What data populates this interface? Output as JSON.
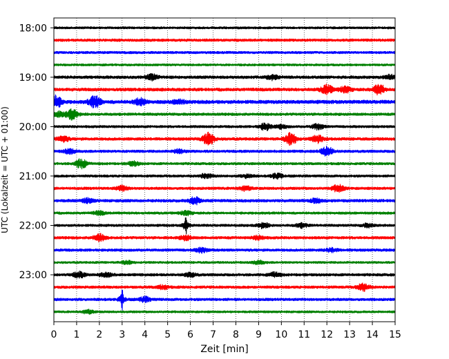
{
  "chart_data": {
    "type": "line",
    "title": "",
    "xlabel": "Zeit  [min]",
    "ylabel": "UTC (Lokalzeit = UTC + 01:00)",
    "xlim": [
      0,
      15
    ],
    "ylim": [
      24.0,
      18.0
    ],
    "x_ticks": [
      "0",
      "1",
      "2",
      "3",
      "4",
      "5",
      "6",
      "7",
      "8",
      "9",
      "10",
      "11",
      "12",
      "13",
      "14",
      "15"
    ],
    "y_ticks": [
      {
        "label": "18:00",
        "hour": 18.0
      },
      {
        "label": "19:00",
        "hour": 19.0
      },
      {
        "label": "20:00",
        "hour": 20.0
      },
      {
        "label": "21:00",
        "hour": 21.0
      },
      {
        "label": "22:00",
        "hour": 22.0
      },
      {
        "label": "23:00",
        "hour": 23.0
      }
    ],
    "grid": {
      "vertical": true,
      "style": "dotted"
    },
    "trace_colors": [
      "#000000",
      "#ff0000",
      "#0000ff",
      "#008000"
    ],
    "traces": [
      {
        "start": "18:00",
        "base": 1.0,
        "events": []
      },
      {
        "start": "18:15",
        "base": 1.2,
        "events": []
      },
      {
        "start": "18:30",
        "base": 1.1,
        "events": []
      },
      {
        "start": "18:45",
        "base": 1.0,
        "events": []
      },
      {
        "start": "19:00",
        "base": 1.3,
        "events": [
          {
            "t": 4.3,
            "a": 2.5
          },
          {
            "t": 9.6,
            "a": 2.0
          },
          {
            "t": 14.8,
            "a": 1.8
          }
        ]
      },
      {
        "start": "19:15",
        "base": 1.4,
        "events": [
          {
            "t": 12.0,
            "a": 4.0
          },
          {
            "t": 14.3,
            "a": 4.5
          },
          {
            "t": 12.8,
            "a": 2.5
          }
        ]
      },
      {
        "start": "19:30",
        "base": 1.6,
        "events": [
          {
            "t": 0.1,
            "a": 5.0
          },
          {
            "t": 1.8,
            "a": 5.0
          },
          {
            "t": 3.8,
            "a": 3.0
          },
          {
            "t": 5.5,
            "a": 1.8
          }
        ]
      },
      {
        "start": "19:45",
        "base": 1.2,
        "events": [
          {
            "t": 0.8,
            "a": 4.5
          },
          {
            "t": 0.2,
            "a": 2.0
          }
        ]
      },
      {
        "start": "20:00",
        "base": 1.1,
        "events": [
          {
            "t": 9.3,
            "a": 3.0
          },
          {
            "t": 11.6,
            "a": 2.5
          },
          {
            "t": 10.0,
            "a": 1.5
          }
        ]
      },
      {
        "start": "20:15",
        "base": 1.3,
        "events": [
          {
            "t": 6.8,
            "a": 5.0
          },
          {
            "t": 10.4,
            "a": 5.5
          },
          {
            "t": 11.6,
            "a": 3.0
          },
          {
            "t": 0.4,
            "a": 2.5
          }
        ]
      },
      {
        "start": "20:30",
        "base": 1.2,
        "events": [
          {
            "t": 12.0,
            "a": 4.0
          },
          {
            "t": 0.7,
            "a": 2.0
          },
          {
            "t": 5.5,
            "a": 1.5
          }
        ]
      },
      {
        "start": "20:45",
        "base": 1.1,
        "events": [
          {
            "t": 1.2,
            "a": 4.0
          },
          {
            "t": 3.5,
            "a": 1.8
          }
        ]
      },
      {
        "start": "21:00",
        "base": 1.1,
        "events": [
          {
            "t": 6.7,
            "a": 2.0
          },
          {
            "t": 9.8,
            "a": 2.2
          },
          {
            "t": 8.5,
            "a": 1.5
          }
        ]
      },
      {
        "start": "21:15",
        "base": 1.2,
        "events": [
          {
            "t": 12.5,
            "a": 3.0
          },
          {
            "t": 3.0,
            "a": 2.0
          },
          {
            "t": 8.4,
            "a": 1.8
          }
        ]
      },
      {
        "start": "21:30",
        "base": 1.3,
        "events": [
          {
            "t": 6.2,
            "a": 3.0
          },
          {
            "t": 1.5,
            "a": 1.8
          },
          {
            "t": 11.5,
            "a": 1.8
          }
        ]
      },
      {
        "start": "21:45",
        "base": 1.1,
        "events": [
          {
            "t": 5.8,
            "a": 1.8
          },
          {
            "t": 2.0,
            "a": 1.5
          }
        ]
      },
      {
        "start": "22:00",
        "base": 1.1,
        "events": [
          {
            "t": 5.8,
            "a": 6.0,
            "spike": true
          },
          {
            "t": 9.2,
            "a": 2.2
          },
          {
            "t": 10.9,
            "a": 1.8
          },
          {
            "t": 13.8,
            "a": 1.5
          }
        ]
      },
      {
        "start": "22:15",
        "base": 1.2,
        "events": [
          {
            "t": 2.0,
            "a": 3.0
          },
          {
            "t": 5.8,
            "a": 2.0
          },
          {
            "t": 9.0,
            "a": 1.6
          }
        ]
      },
      {
        "start": "22:30",
        "base": 1.2,
        "events": [
          {
            "t": 6.5,
            "a": 2.0
          },
          {
            "t": 12.2,
            "a": 1.6
          }
        ]
      },
      {
        "start": "22:45",
        "base": 1.0,
        "events": [
          {
            "t": 3.2,
            "a": 1.6
          },
          {
            "t": 9.0,
            "a": 1.6
          }
        ]
      },
      {
        "start": "23:00",
        "base": 1.2,
        "events": [
          {
            "t": 1.1,
            "a": 2.5
          },
          {
            "t": 2.3,
            "a": 2.0
          },
          {
            "t": 6.0,
            "a": 1.8
          },
          {
            "t": 9.7,
            "a": 1.8
          }
        ]
      },
      {
        "start": "23:15",
        "base": 1.2,
        "events": [
          {
            "t": 13.6,
            "a": 3.0
          },
          {
            "t": 4.8,
            "a": 1.6
          }
        ]
      },
      {
        "start": "23:30",
        "base": 1.2,
        "events": [
          {
            "t": 3.0,
            "a": 6.0,
            "spike": true
          },
          {
            "t": 4.0,
            "a": 2.0
          }
        ]
      },
      {
        "start": "23:45",
        "base": 1.0,
        "events": [
          {
            "t": 1.5,
            "a": 1.5
          }
        ]
      }
    ]
  }
}
